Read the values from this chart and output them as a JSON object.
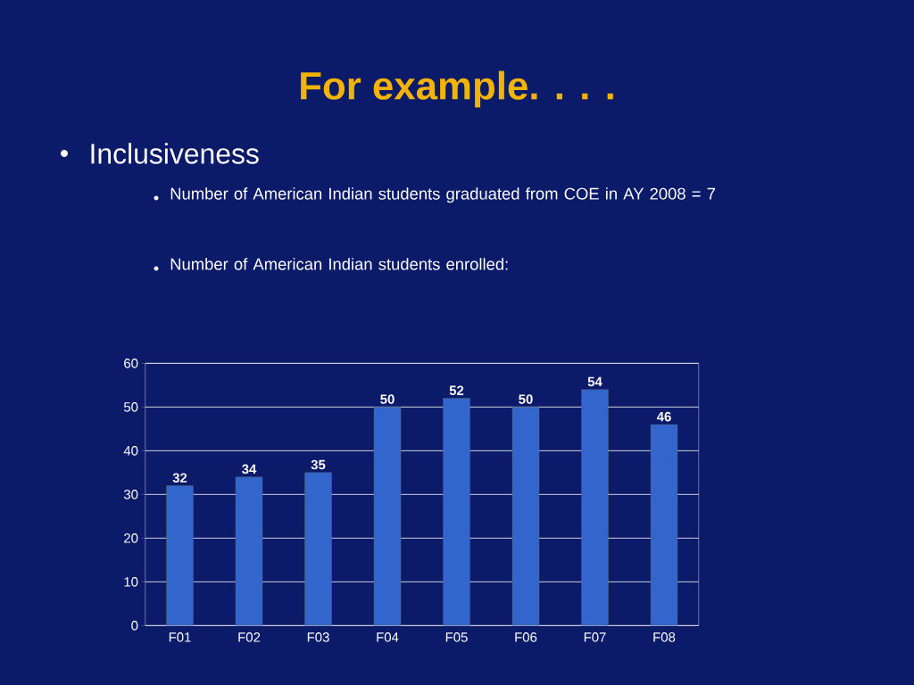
{
  "chart_data": {
    "type": "bar",
    "title": "For example. . . .",
    "subtitle": "Inclusiveness",
    "annotations": [
      "Number of American Indian students graduated from COE in AY 2008 = 7",
      "Number of American Indian students enrolled:"
    ],
    "categories": [
      "F01",
      "F02",
      "F03",
      "F04",
      "F05",
      "F06",
      "F07",
      "F08"
    ],
    "values": [
      32,
      34,
      35,
      50,
      52,
      50,
      54,
      46
    ],
    "color": "#3366cc",
    "ylim": [
      0,
      60
    ],
    "yticks": [
      0,
      10,
      20,
      30,
      40,
      50,
      60
    ],
    "grid": "y",
    "data_labels": true
  }
}
